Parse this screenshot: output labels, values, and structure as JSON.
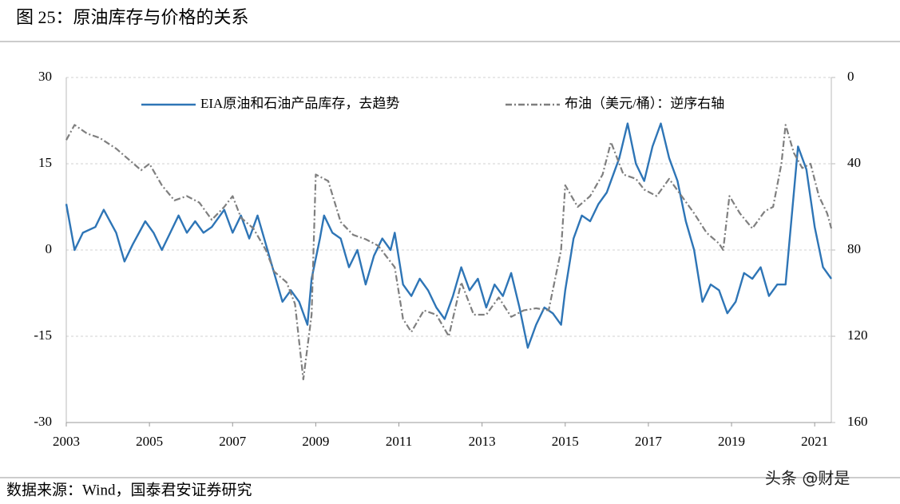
{
  "chart_data": {
    "type": "line",
    "title": "图 25：原油库存与价格的关系",
    "source": "数据来源：Wind，国泰君安证券研究",
    "watermark": "头条 @财是",
    "xlim": [
      2003,
      2021.4
    ],
    "xticks": [
      2003,
      2005,
      2007,
      2009,
      2011,
      2013,
      2015,
      2017,
      2019,
      2021
    ],
    "ylim": [
      -30,
      30
    ],
    "yticks": [
      -30,
      -15,
      0,
      15,
      30
    ],
    "y2lim": [
      160,
      0
    ],
    "y2ticks": [
      0,
      40,
      80,
      120,
      160
    ],
    "grid": true,
    "legend": "top",
    "series": [
      {
        "name": "EIA原油和石油产品库存，去趋势",
        "color": "#2e75b6",
        "style": "solid",
        "x": [
          2003.0,
          2003.2,
          2003.4,
          2003.7,
          2003.9,
          2004.2,
          2004.4,
          2004.6,
          2004.9,
          2005.1,
          2005.3,
          2005.5,
          2005.7,
          2005.9,
          2006.1,
          2006.3,
          2006.5,
          2006.8,
          2007.0,
          2007.2,
          2007.4,
          2007.6,
          2007.8,
          2008.0,
          2008.2,
          2008.4,
          2008.6,
          2008.8,
          2008.9,
          2009.1,
          2009.2,
          2009.4,
          2009.6,
          2009.8,
          2010.0,
          2010.2,
          2010.4,
          2010.6,
          2010.8,
          2010.9,
          2011.1,
          2011.3,
          2011.5,
          2011.7,
          2011.9,
          2012.1,
          2012.3,
          2012.5,
          2012.7,
          2012.9,
          2013.1,
          2013.3,
          2013.5,
          2013.7,
          2013.9,
          2014.1,
          2014.3,
          2014.5,
          2014.7,
          2014.9,
          2015.0,
          2015.2,
          2015.4,
          2015.6,
          2015.8,
          2016.0,
          2016.3,
          2016.5,
          2016.7,
          2016.9,
          2017.1,
          2017.3,
          2017.5,
          2017.7,
          2017.9,
          2018.1,
          2018.3,
          2018.5,
          2018.7,
          2018.9,
          2019.1,
          2019.3,
          2019.5,
          2019.7,
          2019.9,
          2020.1,
          2020.3,
          2020.5,
          2020.6,
          2020.8,
          2021.0,
          2021.2,
          2021.4
        ],
        "values": [
          8,
          0,
          3,
          4,
          7,
          3,
          -2,
          1,
          5,
          3,
          0,
          3,
          6,
          3,
          5,
          3,
          4,
          7,
          3,
          6,
          2,
          6,
          1,
          -4,
          -9,
          -7,
          -9,
          -13,
          -5,
          2,
          6,
          3,
          2,
          -3,
          0,
          -6,
          -1,
          2,
          0,
          3,
          -6,
          -8,
          -5,
          -7,
          -10,
          -12,
          -8,
          -3,
          -7,
          -5,
          -10,
          -6,
          -8,
          -4,
          -10,
          -17,
          -13,
          -10,
          -11,
          -13,
          -7,
          2,
          6,
          5,
          8,
          10,
          16,
          22,
          15,
          12,
          18,
          22,
          16,
          12,
          5,
          0,
          -9,
          -6,
          -7,
          -11,
          -9,
          -4,
          -5,
          -3,
          -8,
          -6,
          -6,
          10,
          18,
          14,
          4,
          -3,
          -5
        ]
      },
      {
        "name": "布油（美元/桶）：逆序右轴",
        "color": "#7f7f7f",
        "style": "dashdot",
        "axis": "y2",
        "x": [
          2003.0,
          2003.2,
          2003.5,
          2003.8,
          2004.2,
          2004.5,
          2004.8,
          2005.0,
          2005.3,
          2005.6,
          2005.9,
          2006.2,
          2006.5,
          2006.8,
          2007.0,
          2007.2,
          2007.5,
          2007.8,
          2008.0,
          2008.3,
          2008.5,
          2008.7,
          2008.9,
          2009.0,
          2009.3,
          2009.6,
          2009.9,
          2010.2,
          2010.5,
          2010.9,
          2011.1,
          2011.3,
          2011.6,
          2011.9,
          2012.2,
          2012.5,
          2012.8,
          2013.1,
          2013.4,
          2013.7,
          2014.0,
          2014.3,
          2014.6,
          2014.9,
          2015.0,
          2015.3,
          2015.6,
          2015.9,
          2016.1,
          2016.4,
          2016.7,
          2016.9,
          2017.2,
          2017.5,
          2017.8,
          2018.1,
          2018.4,
          2018.7,
          2018.8,
          2018.95,
          2019.2,
          2019.5,
          2019.8,
          2020.0,
          2020.2,
          2020.3,
          2020.5,
          2020.7,
          2020.9,
          2021.1,
          2021.3,
          2021.4
        ],
        "values": [
          29,
          22,
          26,
          28,
          33,
          38,
          43,
          40,
          50,
          57,
          55,
          58,
          66,
          60,
          55,
          65,
          70,
          80,
          90,
          95,
          105,
          140,
          110,
          45,
          48,
          67,
          73,
          75,
          78,
          88,
          112,
          118,
          108,
          110,
          120,
          95,
          110,
          110,
          102,
          111,
          108,
          107,
          108,
          80,
          50,
          60,
          55,
          45,
          30,
          45,
          47,
          52,
          55,
          47,
          55,
          63,
          72,
          77,
          80,
          55,
          63,
          70,
          62,
          60,
          40,
          22,
          35,
          42,
          40,
          55,
          63,
          70
        ]
      }
    ]
  }
}
